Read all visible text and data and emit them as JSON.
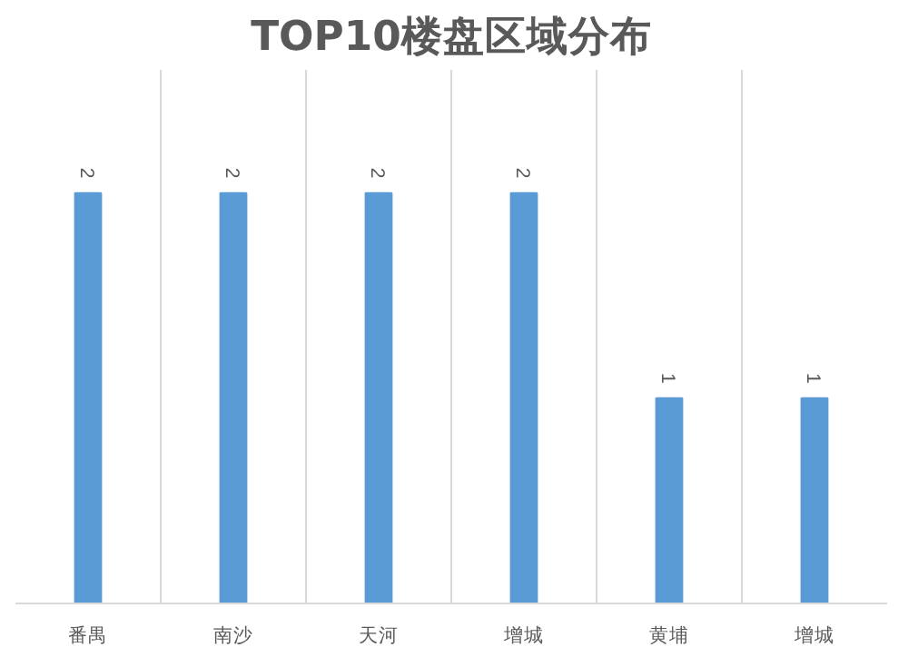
{
  "chart_data": {
    "type": "bar",
    "title": "TOP10楼盘区域分布",
    "categories": [
      "番禺",
      "南沙",
      "天河",
      "增城",
      "黄埔",
      "增城"
    ],
    "values": [
      2,
      2,
      2,
      2,
      1,
      1
    ],
    "color": "#5b9bd5",
    "data_labels": true,
    "grid": "x"
  }
}
